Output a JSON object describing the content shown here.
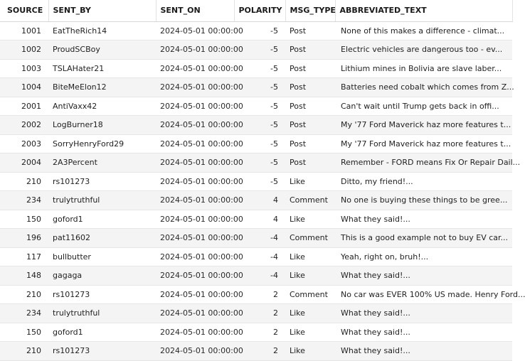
{
  "columns": {
    "source": "SOURCE",
    "sent_by": "SENT_BY",
    "sent_on": "SENT_ON",
    "polarity": "POLARITY",
    "msg_type": "MSG_TYPE",
    "abbreviated_text": "ABBREVIATED_TEXT"
  },
  "rows": [
    {
      "source": "1001",
      "sent_by": "EatTheRich14",
      "sent_on": "2024-05-01 00:00:00",
      "polarity": "-5",
      "msg_type": "Post",
      "text": "None of this makes a difference - climat..."
    },
    {
      "source": "1002",
      "sent_by": "ProudSCBoy",
      "sent_on": "2024-05-01 00:00:00",
      "polarity": "-5",
      "msg_type": "Post",
      "text": "Electric vehicles are dangerous too - ev..."
    },
    {
      "source": "1003",
      "sent_by": "TSLAHater21",
      "sent_on": "2024-05-01 00:00:00",
      "polarity": "-5",
      "msg_type": "Post",
      "text": "Lithium mines in Bolivia are slave laber..."
    },
    {
      "source": "1004",
      "sent_by": "BiteMeElon12",
      "sent_on": "2024-05-01 00:00:00",
      "polarity": "-5",
      "msg_type": "Post",
      "text": "Batteries need cobalt which comes from Z..."
    },
    {
      "source": "2001",
      "sent_by": "AntiVaxx42",
      "sent_on": "2024-05-01 00:00:00",
      "polarity": "-5",
      "msg_type": "Post",
      "text": "Can't wait until Trump gets back in offi..."
    },
    {
      "source": "2002",
      "sent_by": "LogBurner18",
      "sent_on": "2024-05-01 00:00:00",
      "polarity": "-5",
      "msg_type": "Post",
      "text": "My '77 Ford Maverick haz more features t..."
    },
    {
      "source": "2003",
      "sent_by": "SorryHenryFord29",
      "sent_on": "2024-05-01 00:00:00",
      "polarity": "-5",
      "msg_type": "Post",
      "text": "My '77 Ford Maverick haz more features t..."
    },
    {
      "source": "2004",
      "sent_by": "2A3Percent",
      "sent_on": "2024-05-01 00:00:00",
      "polarity": "-5",
      "msg_type": "Post",
      "text": "Remember - FORD means Fix Or Repair Dail..."
    },
    {
      "source": "210",
      "sent_by": "rs101273",
      "sent_on": "2024-05-01 00:00:00",
      "polarity": "-5",
      "msg_type": "Like",
      "text": "Ditto, my friend!..."
    },
    {
      "source": "234",
      "sent_by": "trulytruthful",
      "sent_on": "2024-05-01 00:00:00",
      "polarity": "4",
      "msg_type": "Comment",
      "text": "No one is buying these things to be gree..."
    },
    {
      "source": "150",
      "sent_by": "goford1",
      "sent_on": "2024-05-01 00:00:00",
      "polarity": "4",
      "msg_type": "Like",
      "text": "What they said!..."
    },
    {
      "source": "196",
      "sent_by": "pat11602",
      "sent_on": "2024-05-01 00:00:00",
      "polarity": "-4",
      "msg_type": "Comment",
      "text": "This is a good example not to buy EV car..."
    },
    {
      "source": "117",
      "sent_by": "bullbutter",
      "sent_on": "2024-05-01 00:00:00",
      "polarity": "-4",
      "msg_type": "Like",
      "text": "Yeah, right on, bruh!..."
    },
    {
      "source": "148",
      "sent_by": "gagaga",
      "sent_on": "2024-05-01 00:00:00",
      "polarity": "-4",
      "msg_type": "Like",
      "text": "What they said!..."
    },
    {
      "source": "210",
      "sent_by": "rs101273",
      "sent_on": "2024-05-01 00:00:00",
      "polarity": "2",
      "msg_type": "Comment",
      "text": "No car was EVER 100% US made. Henry Ford..."
    },
    {
      "source": "234",
      "sent_by": "trulytruthful",
      "sent_on": "2024-05-01 00:00:00",
      "polarity": "2",
      "msg_type": "Like",
      "text": "What they said!..."
    },
    {
      "source": "150",
      "sent_by": "goford1",
      "sent_on": "2024-05-01 00:00:00",
      "polarity": "2",
      "msg_type": "Like",
      "text": "What they said!..."
    },
    {
      "source": "210",
      "sent_by": "rs101273",
      "sent_on": "2024-05-01 00:00:00",
      "polarity": "2",
      "msg_type": "Like",
      "text": "What they said!..."
    }
  ]
}
